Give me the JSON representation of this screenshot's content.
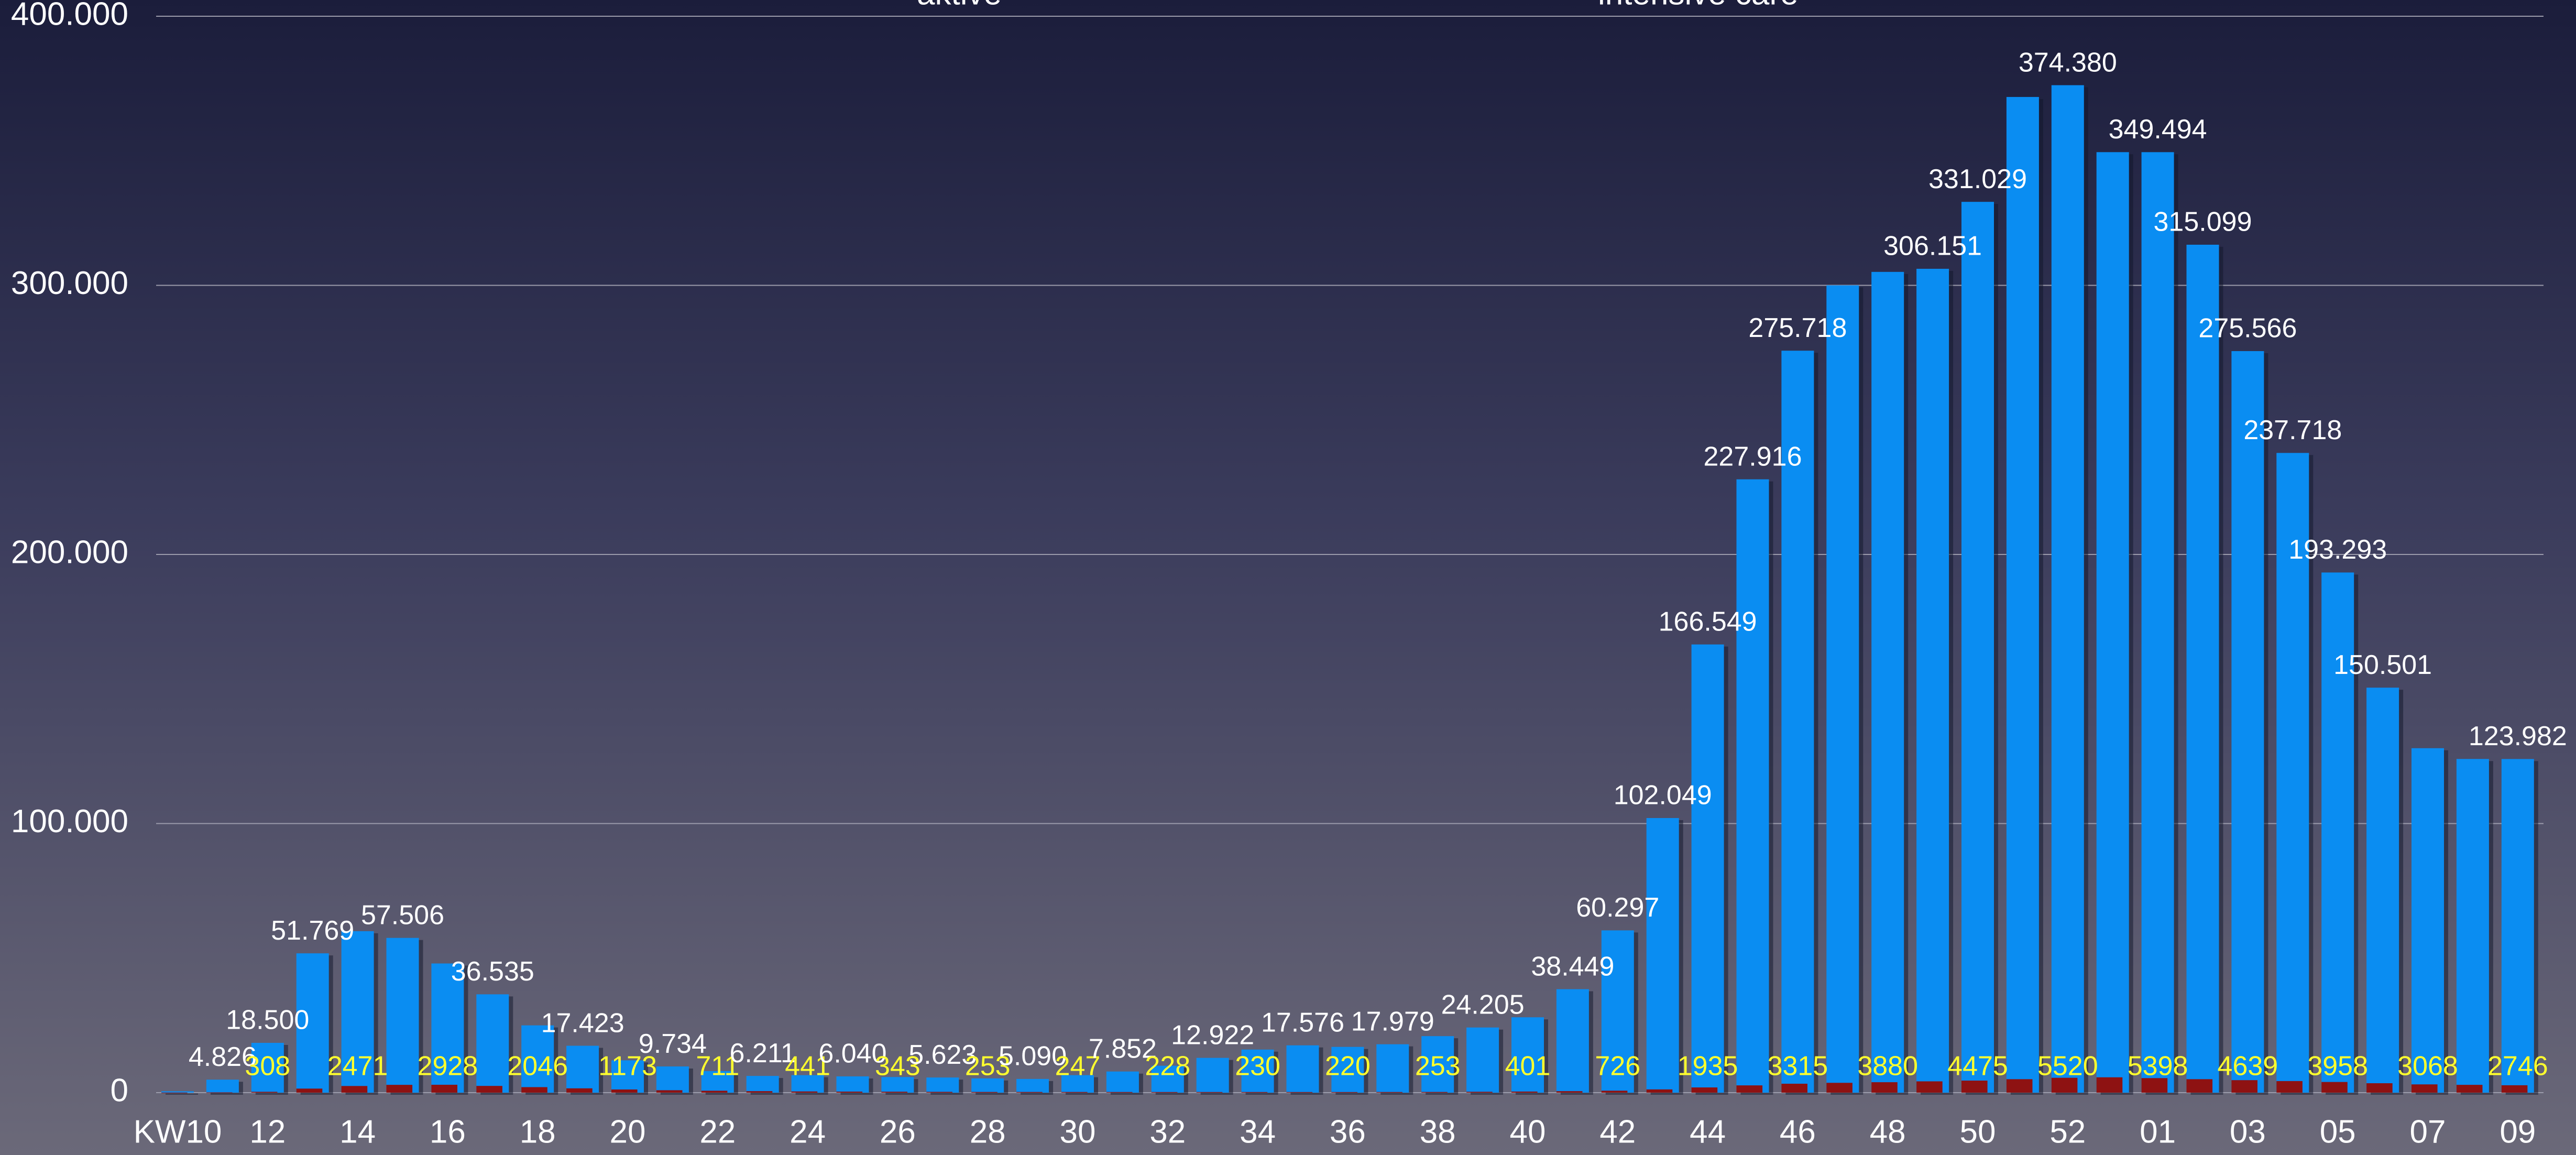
{
  "chart_data": {
    "type": "bar",
    "categories": [
      "KW10",
      null,
      "12",
      null,
      "14",
      null,
      "16",
      null,
      "18",
      null,
      "20",
      null,
      "22",
      null,
      "24",
      null,
      "26",
      null,
      "28",
      null,
      "30",
      null,
      "32",
      null,
      "34",
      null,
      "36",
      null,
      "38",
      null,
      "40",
      null,
      "42",
      null,
      "44",
      null,
      "46",
      null,
      "48",
      null,
      "50",
      null,
      "52",
      null,
      "01",
      null,
      "03",
      null,
      "05",
      null,
      "07",
      null,
      "09"
    ],
    "series": [
      {
        "name": "aktive",
        "color": "#0a8df2",
        "values": [
          500,
          4826,
          18500,
          51769,
          60000,
          57506,
          48000,
          36535,
          25000,
          17423,
          12000,
          9734,
          8000,
          6211,
          6500,
          6040,
          5800,
          5623,
          5300,
          5090,
          6500,
          7852,
          10000,
          12922,
          16000,
          17576,
          17000,
          17979,
          21000,
          24205,
          28000,
          38449,
          60297,
          102049,
          166549,
          227916,
          275718,
          300000,
          305000,
          306151,
          331029,
          370000,
          374380,
          349500,
          349494,
          315099,
          275566,
          237718,
          193293,
          150501,
          128000,
          124000,
          123982
        ],
        "value_labels": [
          null,
          "4.826",
          "18.500",
          "51.769",
          null,
          "57.506",
          null,
          "36.535",
          null,
          "17.423",
          null,
          "9.734",
          null,
          "6.211",
          null,
          "6.040",
          null,
          "5.623",
          null,
          "5.090",
          null,
          "7.852",
          null,
          "12.922",
          null,
          "17.576",
          null,
          "17.979",
          null,
          "24.205",
          null,
          "38.449",
          "60.297",
          "102.049",
          "166.549",
          "227.916",
          "275.718",
          null,
          null,
          "306.151",
          "331.029",
          null,
          "374.380",
          null,
          "349.494",
          "315.099",
          "275.566",
          "237.718",
          "193.293",
          "150.501",
          null,
          null,
          "123.982"
        ]
      },
      {
        "name": "intensive care",
        "color": "#8e1212",
        "values": [
          20,
          100,
          308,
          1500,
          2471,
          2900,
          2928,
          2500,
          2046,
          1600,
          1173,
          900,
          711,
          550,
          441,
          380,
          343,
          290,
          253,
          250,
          247,
          235,
          228,
          230,
          230,
          225,
          220,
          235,
          253,
          320,
          401,
          550,
          726,
          1200,
          1935,
          2700,
          3315,
          3650,
          3880,
          4200,
          4475,
          5000,
          5520,
          5700,
          5398,
          5000,
          4639,
          4300,
          3958,
          3500,
          3068,
          2900,
          2746
        ],
        "value_labels": [
          null,
          null,
          "308",
          null,
          "2471",
          null,
          "2928",
          null,
          "2046",
          null,
          "1173",
          null,
          "711",
          null,
          "441",
          null,
          "343",
          null,
          "253",
          null,
          "247",
          null,
          "228",
          null,
          "230",
          null,
          "220",
          null,
          "253",
          null,
          "401",
          null,
          "726",
          null,
          "1935",
          null,
          "3315",
          null,
          "3880",
          null,
          "4475",
          null,
          "5520",
          null,
          "5398",
          null,
          "4639",
          null,
          "3958",
          null,
          "3068",
          null,
          "2746"
        ]
      }
    ],
    "ylim": [
      0,
      400000
    ],
    "yticks": [
      0,
      {
        "value": 100000,
        "label": "100.000"
      },
      {
        "value": 200000,
        "label": "200.000"
      },
      {
        "value": 300000,
        "label": "300.000"
      },
      {
        "value": 400000,
        "label": "400.000"
      }
    ],
    "grid": true,
    "legend": "top"
  }
}
